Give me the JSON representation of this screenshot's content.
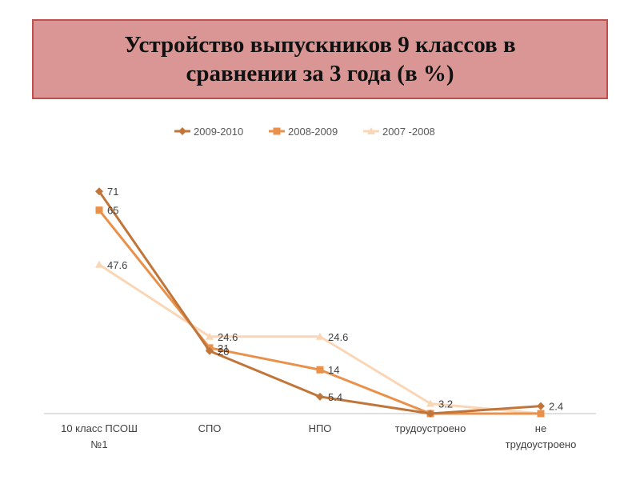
{
  "title": "Устройство выпускников 9 классов в сравнении за 3 года (в %)",
  "chart_data": {
    "type": "line",
    "title": "Устройство выпускников 9 классов в сравнении за 3 года (в %)",
    "xlabel": "",
    "ylabel": "",
    "ylim": [
      0,
      80
    ],
    "grid": false,
    "legend_position": "top",
    "categories": [
      "10 класс ПСОШ №1",
      "СПО",
      "НПО",
      "трудоустроено",
      "не трудоустроено"
    ],
    "category_lines": [
      [
        "10 класс ПСОШ",
        "№1"
      ],
      [
        "СПО"
      ],
      [
        "НПО"
      ],
      [
        "трудоустроено"
      ],
      [
        "не",
        "трудоустроено"
      ]
    ],
    "series": [
      {
        "name": "2009-2010",
        "color": "#c0763a",
        "marker": "diamond",
        "values": [
          71,
          20,
          5.4,
          0,
          2.4
        ],
        "labels": [
          "71",
          "20",
          "5.4",
          "",
          "2.4"
        ]
      },
      {
        "name": "2008-2009",
        "color": "#e9914a",
        "marker": "square",
        "values": [
          65,
          21,
          14,
          0,
          0
        ],
        "labels": [
          "65",
          "21",
          "14",
          "",
          ""
        ]
      },
      {
        "name": "2007 -2008",
        "color": "#fad6b7",
        "marker": "triangle",
        "values": [
          47.6,
          24.6,
          24.6,
          3.2,
          0
        ],
        "labels": [
          "47.6",
          "24.6",
          "24.6",
          "3.2",
          ""
        ]
      }
    ]
  }
}
